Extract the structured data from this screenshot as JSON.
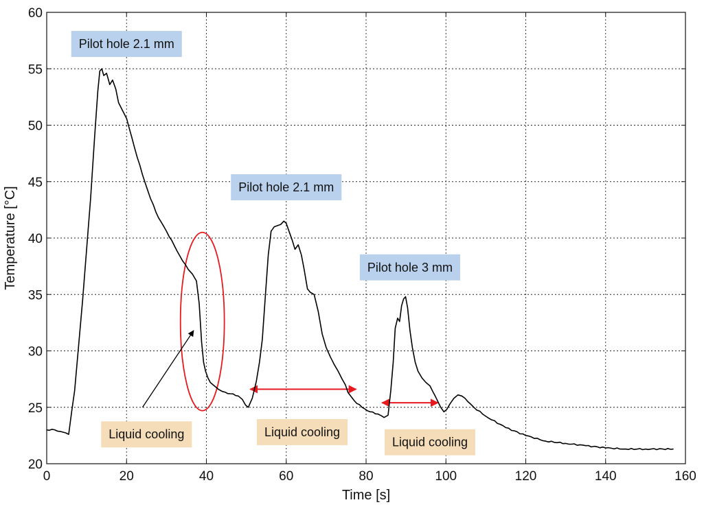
{
  "chart_data": {
    "type": "line",
    "xlabel": "Time [s]",
    "ylabel": "Temperature [°C]",
    "xlim": [
      0,
      160
    ],
    "ylim": [
      20,
      60
    ],
    "x_ticks": [
      "0",
      "20",
      "40",
      "60",
      "80",
      "100",
      "120",
      "140",
      "160"
    ],
    "y_ticks": [
      "20",
      "25",
      "30",
      "35",
      "40",
      "45",
      "50",
      "55",
      "60"
    ],
    "grid": true,
    "series": [
      {
        "color": "#000000",
        "x": [
          0,
          2,
          4,
          5.5,
          7,
          8,
          9,
          10,
          11,
          12,
          12.8,
          13.3,
          13.8,
          14.3,
          15,
          15.8,
          16.5,
          17.3,
          18,
          19,
          20,
          22,
          24,
          26,
          28,
          30,
          32,
          34,
          35.5,
          36.5,
          37.5,
          38.2,
          38.8,
          39.3,
          39.8,
          40.4,
          41,
          42,
          43,
          44,
          46,
          48,
          49,
          49.8,
          50.5,
          51.5,
          52.5,
          53.3,
          54,
          54.8,
          55.5,
          56.2,
          57,
          57.8,
          58.6,
          59.4,
          60,
          60.8,
          61.5,
          62.2,
          63,
          63.8,
          64.5,
          65.3,
          66,
          67,
          68,
          69,
          70,
          71,
          72,
          73,
          74,
          74.8,
          75.5,
          77,
          79,
          81,
          83,
          84.5,
          85.5,
          86.2,
          86.8,
          87.3,
          87.9,
          88.4,
          88.9,
          89.4,
          89.9,
          90.4,
          91,
          91.6,
          92.3,
          93,
          94,
          95,
          96,
          96.7,
          97.3,
          98,
          98.7,
          99.5,
          100.2,
          101,
          102,
          103,
          104,
          105.5,
          107,
          110,
          115,
          120,
          125,
          130,
          135,
          140,
          145,
          150,
          157
        ],
        "y": [
          23.0,
          23.0,
          22.8,
          22.6,
          26.5,
          30.5,
          34.5,
          39,
          43.5,
          49,
          53,
          54.8,
          55.0,
          54.4,
          54.6,
          53.6,
          54.0,
          53.2,
          52.0,
          51.3,
          50.6,
          48.0,
          45.6,
          43.5,
          41.8,
          40.6,
          39.3,
          38.0,
          37.2,
          36.8,
          36.2,
          34.2,
          30.8,
          29.0,
          28.2,
          27.6,
          27.2,
          26.9,
          26.6,
          26.4,
          26.2,
          26.0,
          25.7,
          25.2,
          25.0,
          25.8,
          27.3,
          29.0,
          31.0,
          35.0,
          38.5,
          40.6,
          41.0,
          41.1,
          41.2,
          41.5,
          41.3,
          40.5,
          39.8,
          39.0,
          39.4,
          38.5,
          37.2,
          35.5,
          35.2,
          35.0,
          33.5,
          31.5,
          30.3,
          29.5,
          28.8,
          28.2,
          27.5,
          27.0,
          26.3,
          25.6,
          25.0,
          24.6,
          24.4,
          24.1,
          24.3,
          26.5,
          29.0,
          32.0,
          32.9,
          32.6,
          34.0,
          34.6,
          34.8,
          33.8,
          31.8,
          30.3,
          29.0,
          28.2,
          27.6,
          27.2,
          26.9,
          26.4,
          26.0,
          25.5,
          25.0,
          24.6,
          24.8,
          25.3,
          25.8,
          26.1,
          26.0,
          25.5,
          25.0,
          24.2,
          23.2,
          22.5,
          22.0,
          21.8,
          21.6,
          21.4,
          21.3,
          21.3,
          21.3
        ]
      }
    ],
    "annotations": {
      "blue_boxes": [
        {
          "text": "Pilot hole 2.1 mm",
          "x": 20,
          "y": 57.2
        },
        {
          "text": "Pilot hole 2.1 mm",
          "x": 60,
          "y": 44.5
        },
        {
          "text": "Pilot hole 3 mm",
          "x": 91,
          "y": 37.4
        }
      ],
      "orange_boxes": [
        {
          "text": "Liquid cooling",
          "x": 25,
          "y": 22.6
        },
        {
          "text": "Liquid cooling",
          "x": 64,
          "y": 22.8
        },
        {
          "text": "Liquid cooling",
          "x": 96,
          "y": 21.9
        }
      ],
      "ellipse": {
        "cx": 39,
        "cy": 32.6,
        "rx": 5.5,
        "ry": 7.9
      },
      "black_arrow": {
        "from": [
          24,
          25
        ],
        "to": [
          36.8,
          31.8
        ]
      },
      "red_double_arrows": [
        {
          "x1": 51,
          "x2": 77.5,
          "y": 26.6
        },
        {
          "x1": 84,
          "x2": 98,
          "y": 25.4
        }
      ],
      "colors": {
        "blue_box": "#b9d1ec",
        "orange_box": "#f5ddb9",
        "red": "#e8191e",
        "line": "#000000"
      }
    }
  }
}
